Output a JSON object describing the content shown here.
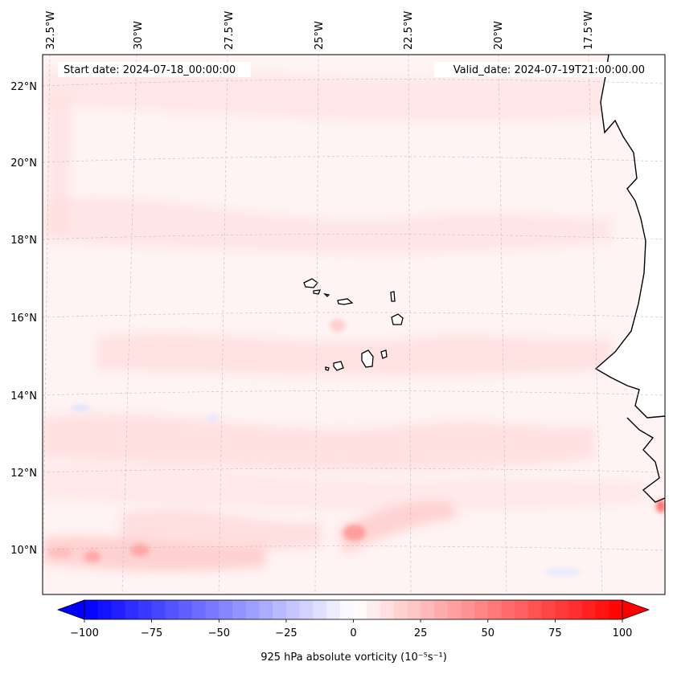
{
  "header": {
    "start_date": "Start date: 2024-07-18_00:00:00",
    "valid_date": "Valid_date: 2024-07-19T21:00:00.00"
  },
  "longitude_labels": [
    "32.5°W",
    "30°W",
    "27.5°W",
    "25°W",
    "22.5°W",
    "20°W",
    "17.5°W"
  ],
  "latitude_labels": [
    "22°N",
    "20°N",
    "18°N",
    "16°N",
    "14°N",
    "12°N",
    "10°N"
  ],
  "colorbar": {
    "label": "925 hPa absolute vorticity",
    "units": "(10⁻⁵s⁻¹)",
    "ticks": [
      "−100",
      "−75",
      "−50",
      "−25",
      "0",
      "25",
      "50",
      "75",
      "100"
    ],
    "min": -100,
    "max": 100,
    "levels": 40,
    "color_low": "#0000ff",
    "color_mid": "#ffffff",
    "color_high": "#ff0000"
  },
  "colors": {
    "background_field": "#fff3f3",
    "land": "#ffffff",
    "coastline": "#000000",
    "gridline": "#bbbbbb"
  }
}
